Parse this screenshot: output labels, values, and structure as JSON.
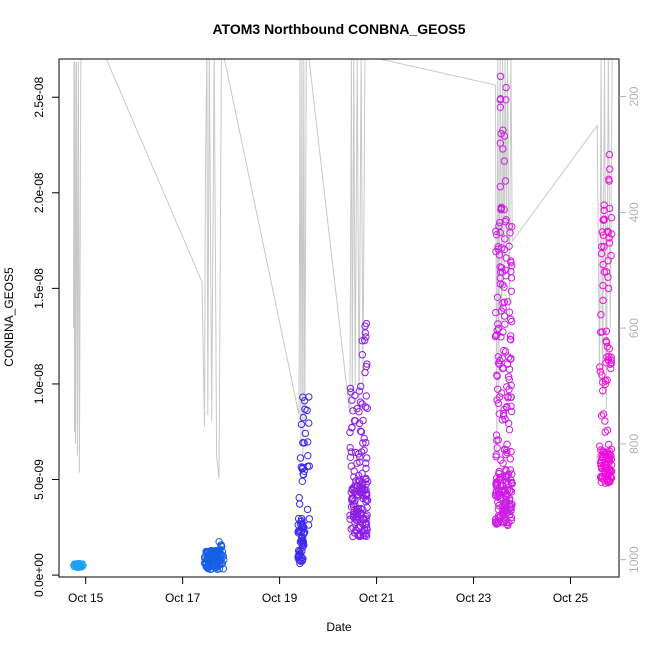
{
  "chart_data": {
    "type": "scatter",
    "title": "ATOM3 Northbound CONBNA_GEOS5",
    "xlabel": "Date",
    "ylabel": "CONBNA_GEOS5",
    "xlim": [
      14.45,
      26.0
    ],
    "ylim": [
      -1e-10,
      2.7e-08
    ],
    "x_ticks": [
      {
        "value": 15,
        "label": "Oct 15"
      },
      {
        "value": 17,
        "label": "Oct 17"
      },
      {
        "value": 19,
        "label": "Oct 19"
      },
      {
        "value": 21,
        "label": "Oct 21"
      },
      {
        "value": 23,
        "label": "Oct 23"
      },
      {
        "value": 25,
        "label": "Oct 25"
      }
    ],
    "y_ticks": [
      {
        "value": 0,
        "label": "0.0e+00"
      },
      {
        "value": 5e-09,
        "label": "5.0e-09"
      },
      {
        "value": 1e-08,
        "label": "1.0e-08"
      },
      {
        "value": 1.5e-08,
        "label": "1.5e-08"
      },
      {
        "value": 2e-08,
        "label": "2.0e-08"
      },
      {
        "value": 2.5e-08,
        "label": "2.5e-08"
      }
    ],
    "y2": {
      "reversed": true,
      "lim": [
        1030,
        135
      ],
      "ticks": [
        200,
        400,
        600,
        800,
        1000
      ],
      "color": "#b3b3b3"
    },
    "grid": false,
    "legend": "none",
    "series": [
      {
        "color": "#1ea0f0",
        "groups": [
          {
            "x": [
              14.73,
              14.95
            ],
            "y": [
              4e-10,
              6e-10
            ],
            "n": 30
          }
        ]
      },
      {
        "color": "#1560e6",
        "groups": [
          {
            "x": [
              17.45,
              17.85
            ],
            "y": [
              3e-10,
              1.3e-09
            ],
            "n": 110
          },
          {
            "x": [
              17.75,
              17.82
            ],
            "y": [
              1.3e-09,
              1.75e-09
            ],
            "n": 6
          }
        ]
      },
      {
        "color": "#3c28f0",
        "groups": [
          {
            "x": [
              19.38,
              19.5
            ],
            "y": [
              6e-10,
              3e-09
            ],
            "n": 45
          },
          {
            "x": [
              19.4,
              19.62
            ],
            "y": [
              2e-09,
              9.6e-09
            ],
            "n": 32
          }
        ]
      },
      {
        "color": "#8c1ee6",
        "groups": [
          {
            "x": [
              20.45,
              20.82
            ],
            "y": [
              2e-09,
              5e-09
            ],
            "n": 110
          },
          {
            "x": [
              20.45,
              20.82
            ],
            "y": [
              5e-09,
              1.02e-08
            ],
            "n": 45
          },
          {
            "x": [
              20.7,
              20.82
            ],
            "y": [
              1.05e-08,
              1.35e-08
            ],
            "n": 10
          }
        ]
      },
      {
        "color": "#cd1ee6",
        "groups": [
          {
            "x": [
              23.45,
              23.8
            ],
            "y": [
              2.6e-09,
              5.4e-09
            ],
            "n": 110
          },
          {
            "x": [
              23.45,
              23.8
            ],
            "y": [
              5.4e-09,
              1.9e-08
            ],
            "n": 120
          },
          {
            "x": [
              23.55,
              23.68
            ],
            "y": [
              1.9e-08,
              2.65e-08
            ],
            "n": 18
          }
        ]
      },
      {
        "color": "#ee10da",
        "groups": [
          {
            "x": [
              25.6,
              25.85
            ],
            "y": [
              4.8e-09,
              6.5e-09
            ],
            "n": 70
          },
          {
            "x": [
              25.6,
              25.85
            ],
            "y": [
              6.5e-09,
              2.05e-08
            ],
            "n": 60
          },
          {
            "x": [
              25.78,
              25.85
            ],
            "y": [
              2.05e-08,
              2.25e-08
            ],
            "n": 4
          }
        ]
      }
    ],
    "pressure_profile": {
      "color": "#c8c8c8",
      "unit": "secondary axis (right)",
      "points": [
        [
          14.75,
          600
        ],
        [
          14.76,
          140
        ],
        [
          14.77,
          780
        ],
        [
          14.78,
          140
        ],
        [
          14.79,
          800
        ],
        [
          14.81,
          140
        ],
        [
          14.83,
          820
        ],
        [
          14.85,
          140
        ],
        [
          14.87,
          850
        ],
        [
          14.9,
          140
        ],
        [
          14.93,
          130
        ],
        [
          15.4,
          130
        ],
        [
          17.4,
          520
        ],
        [
          17.45,
          770
        ],
        [
          17.47,
          340
        ],
        [
          17.5,
          120
        ],
        [
          17.52,
          750
        ],
        [
          17.55,
          120
        ],
        [
          17.6,
          760
        ],
        [
          17.65,
          120
        ],
        [
          17.7,
          820
        ],
        [
          17.75,
          860
        ],
        [
          17.8,
          130
        ],
        [
          17.85,
          130
        ],
        [
          19.4,
          750
        ],
        [
          19.42,
          130
        ],
        [
          19.44,
          800
        ],
        [
          19.46,
          130
        ],
        [
          19.48,
          830
        ],
        [
          19.5,
          130
        ],
        [
          19.52,
          760
        ],
        [
          19.55,
          130
        ],
        [
          19.6,
          130
        ],
        [
          20.45,
          750
        ],
        [
          20.48,
          130
        ],
        [
          20.5,
          720
        ],
        [
          20.53,
          130
        ],
        [
          20.56,
          700
        ],
        [
          20.6,
          130
        ],
        [
          20.64,
          740
        ],
        [
          20.68,
          130
        ],
        [
          20.72,
          700
        ],
        [
          20.76,
          130
        ],
        [
          20.8,
          130
        ],
        [
          23.45,
          180
        ],
        [
          23.48,
          820
        ],
        [
          23.5,
          130
        ],
        [
          23.52,
          700
        ],
        [
          23.55,
          130
        ],
        [
          23.58,
          600
        ],
        [
          23.6,
          130
        ],
        [
          23.63,
          500
        ],
        [
          23.65,
          130
        ],
        [
          23.68,
          450
        ],
        [
          23.7,
          130
        ],
        [
          23.74,
          580
        ],
        [
          23.77,
          130
        ],
        [
          23.8,
          450
        ],
        [
          25.55,
          250
        ],
        [
          25.6,
          700
        ],
        [
          25.63,
          130
        ],
        [
          25.66,
          720
        ],
        [
          25.7,
          130
        ],
        [
          25.74,
          740
        ],
        [
          25.78,
          130
        ],
        [
          25.82,
          600
        ],
        [
          25.86,
          130
        ]
      ]
    }
  }
}
